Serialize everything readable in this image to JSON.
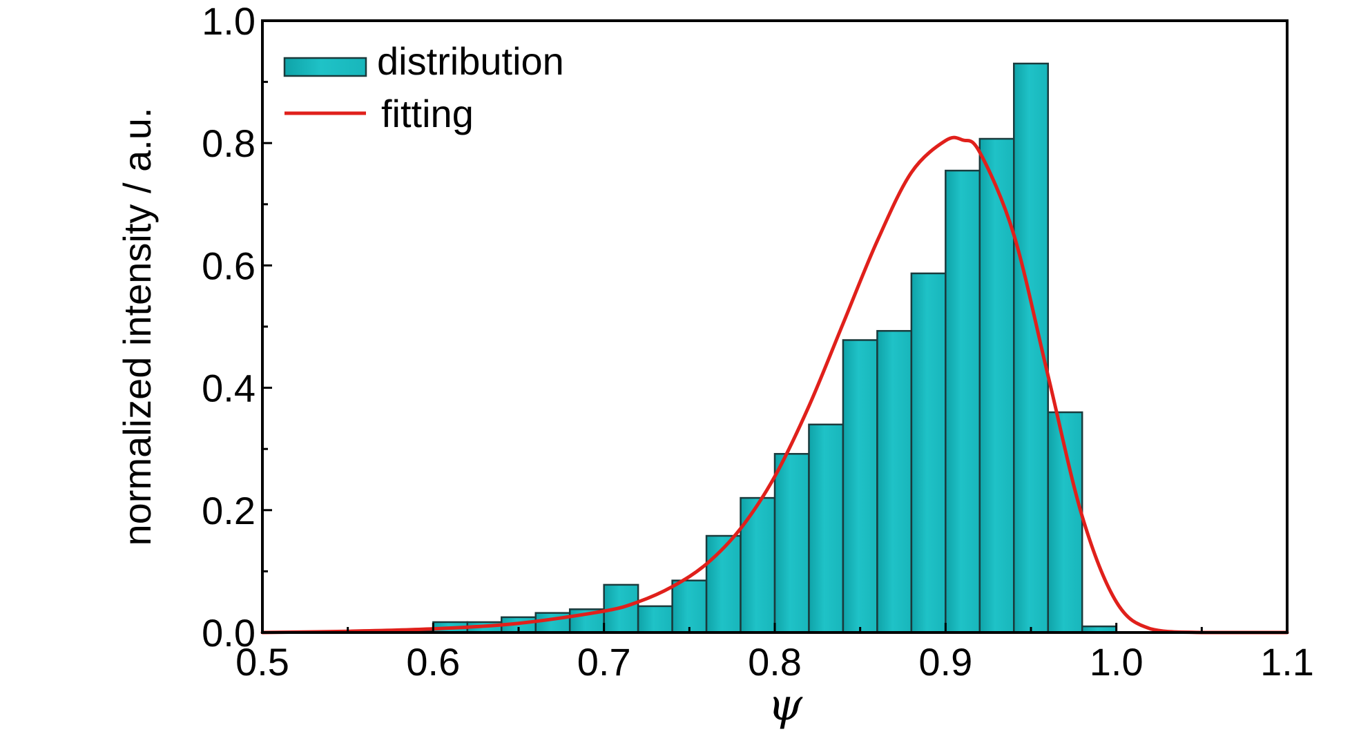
{
  "chart_data": {
    "type": "bar",
    "title": "",
    "xlabel": "ψ",
    "ylabel": "normalized intensity / a.u.",
    "xlim": [
      0.5,
      1.1
    ],
    "ylim": [
      0.0,
      1.0
    ],
    "x_ticks": [
      "0.5",
      "0.6",
      "0.7",
      "0.8",
      "0.9",
      "1.0",
      "1.1"
    ],
    "y_ticks": [
      "0.0",
      "0.2",
      "0.4",
      "0.6",
      "0.8",
      "1.0"
    ],
    "bin_width": 0.02,
    "series": [
      {
        "name": "distribution",
        "kind": "histogram",
        "color": "#1FC2C7",
        "bins": [
          {
            "x0": 0.56,
            "value": 0.003
          },
          {
            "x0": 0.58,
            "value": 0.003
          },
          {
            "x0": 0.6,
            "value": 0.017
          },
          {
            "x0": 0.62,
            "value": 0.017
          },
          {
            "x0": 0.64,
            "value": 0.025
          },
          {
            "x0": 0.66,
            "value": 0.032
          },
          {
            "x0": 0.68,
            "value": 0.038
          },
          {
            "x0": 0.7,
            "value": 0.078
          },
          {
            "x0": 0.72,
            "value": 0.043
          },
          {
            "x0": 0.74,
            "value": 0.085
          },
          {
            "x0": 0.76,
            "value": 0.158
          },
          {
            "x0": 0.78,
            "value": 0.22
          },
          {
            "x0": 0.8,
            "value": 0.292
          },
          {
            "x0": 0.82,
            "value": 0.34
          },
          {
            "x0": 0.84,
            "value": 0.478
          },
          {
            "x0": 0.86,
            "value": 0.493
          },
          {
            "x0": 0.88,
            "value": 0.587
          },
          {
            "x0": 0.9,
            "value": 0.755
          },
          {
            "x0": 0.92,
            "value": 0.807
          },
          {
            "x0": 0.94,
            "value": 0.93
          },
          {
            "x0": 0.96,
            "value": 0.36
          },
          {
            "x0": 0.98,
            "value": 0.01
          }
        ]
      },
      {
        "name": "fitting",
        "kind": "line",
        "color": "#E0201B",
        "x": [
          0.5,
          0.55,
          0.6,
          0.65,
          0.7,
          0.72,
          0.74,
          0.76,
          0.78,
          0.8,
          0.82,
          0.84,
          0.86,
          0.88,
          0.9,
          0.91,
          0.92,
          0.94,
          0.96,
          0.98,
          1.0,
          1.02,
          1.05,
          1.1
        ],
        "y": [
          0.0,
          0.002,
          0.006,
          0.015,
          0.035,
          0.05,
          0.075,
          0.112,
          0.17,
          0.255,
          0.37,
          0.505,
          0.64,
          0.752,
          0.804,
          0.805,
          0.785,
          0.65,
          0.42,
          0.19,
          0.05,
          0.006,
          0.0,
          0.0
        ]
      }
    ],
    "legend": {
      "position": "top-left",
      "entries": [
        "distribution",
        "fitting"
      ]
    },
    "grid": false
  }
}
